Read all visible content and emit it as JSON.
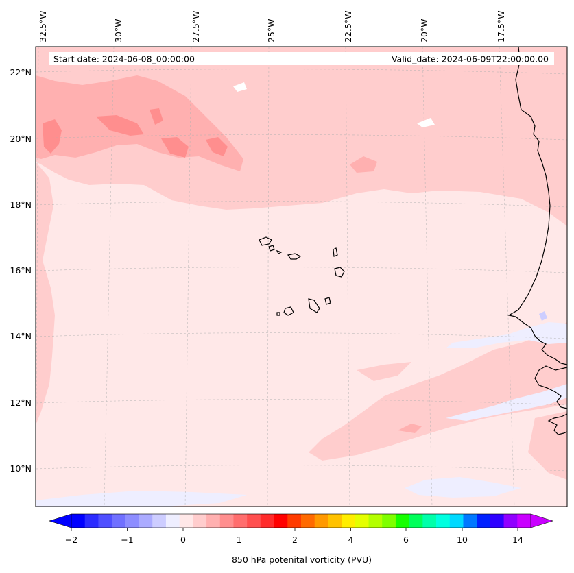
{
  "info": {
    "start_date": "Start date: 2024-06-08_00:00:00",
    "valid_date": "Valid_date: 2024-06-09T22:00:00.00"
  },
  "lon_labels": [
    "32.5°W",
    "30°W",
    "27.5°W",
    "25°W",
    "22.5°W",
    "20°W",
    "17.5°W"
  ],
  "lat_labels": [
    "22°N",
    "20°N",
    "18°N",
    "16°N",
    "14°N",
    "12°N",
    "10°N"
  ],
  "colorbar": {
    "label": "850 hPa potenital vorticity (PVU)",
    "tick_labels": [
      "−2",
      "−1",
      "0",
      "1",
      "2",
      "4",
      "6",
      "10",
      "14"
    ],
    "colors": [
      "#0000ff",
      "#2b2bff",
      "#4f4fff",
      "#7070ff",
      "#8d8dff",
      "#ababff",
      "#cdcdff",
      "#eeeeff",
      "#ffe8e8",
      "#ffcdcd",
      "#ffb0b0",
      "#ff8e8e",
      "#ff6e6e",
      "#ff4f4f",
      "#ff2b2b",
      "#ff0000",
      "#ff3b00",
      "#ff6a00",
      "#ff9900",
      "#ffc200",
      "#ffee00",
      "#e5ff00",
      "#b4ff00",
      "#7eff00",
      "#15ff00",
      "#00ff5a",
      "#00ffaa",
      "#00ffe0",
      "#00d9ff",
      "#0078ff",
      "#0021ff",
      "#2e00ff",
      "#9000ff",
      "#c900ff"
    ],
    "under_color": "#0000ff",
    "over_color": "#c900ff"
  },
  "field_colors": {
    "background": "#ffe8e8",
    "light_pink": "#ffcdcd",
    "pink": "#ffb0b0",
    "dark_pink": "#ff8e8e",
    "light_blue": "#eeeeff",
    "blue": "#cdcdff"
  }
}
